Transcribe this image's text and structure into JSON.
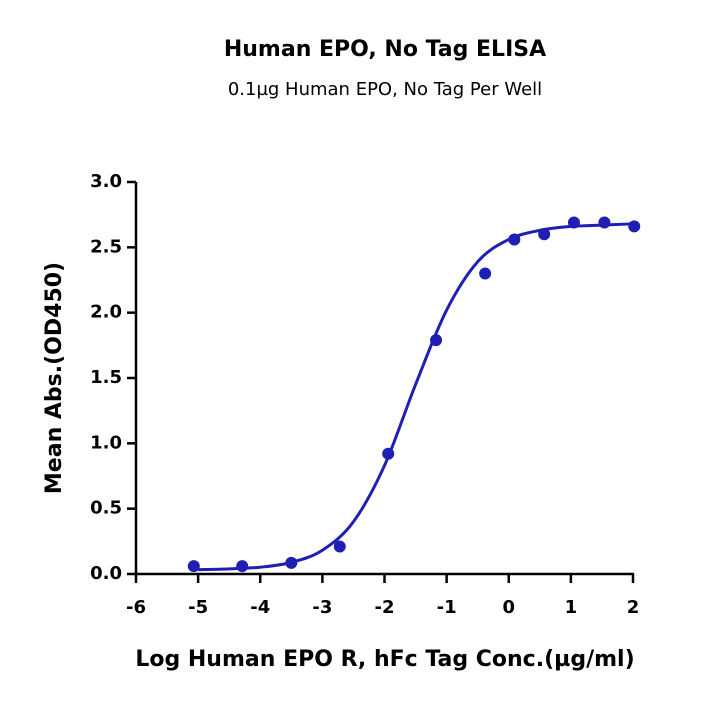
{
  "chart_data": {
    "type": "scatter",
    "title": "Human EPO, No Tag ELISA",
    "subtitle": "0.1µg Human EPO, No Tag Per Well",
    "x_label": "Log Human EPO R, hFc Tag Conc.(µg/ml)",
    "y_label": "Mean Abs.(OD450)",
    "series": [
      {
        "color": "#1f1fb4",
        "x": [
          -5.07,
          -4.29,
          -3.5,
          -2.72,
          -1.94,
          -1.17,
          -0.38,
          0.09,
          0.57,
          1.05,
          1.54,
          2.02
        ],
        "values": [
          0.06,
          0.06,
          0.085,
          0.21,
          0.92,
          1.79,
          2.3,
          2.56,
          2.6,
          2.69,
          2.69,
          2.66
        ]
      },
      {
        "type": "line",
        "color": "#1f1fb4",
        "x": [
          -5,
          -4.5,
          -4,
          -3.5,
          -3,
          -2.5,
          -2,
          -1.5,
          -1,
          -0.5,
          0,
          0.5,
          1,
          1.5,
          2
        ],
        "values": [
          0.033,
          0.039,
          0.052,
          0.089,
          0.182,
          0.4,
          0.83,
          1.45,
          2.02,
          2.39,
          2.56,
          2.63,
          2.66,
          2.67,
          2.68
        ]
      }
    ],
    "xlim": [
      -6,
      2
    ],
    "xticks": [
      -6,
      -5,
      -4,
      -3,
      -2,
      -1,
      0,
      1,
      2
    ],
    "ylim": [
      0,
      3
    ],
    "yticks": [
      {
        "value": 0,
        "label": "0.0"
      },
      0.5,
      {
        "value": 1,
        "label": "1.0"
      },
      1.5,
      {
        "value": 2,
        "label": "2.0"
      },
      2.5,
      {
        "value": 3,
        "label": "3.0"
      }
    ]
  }
}
